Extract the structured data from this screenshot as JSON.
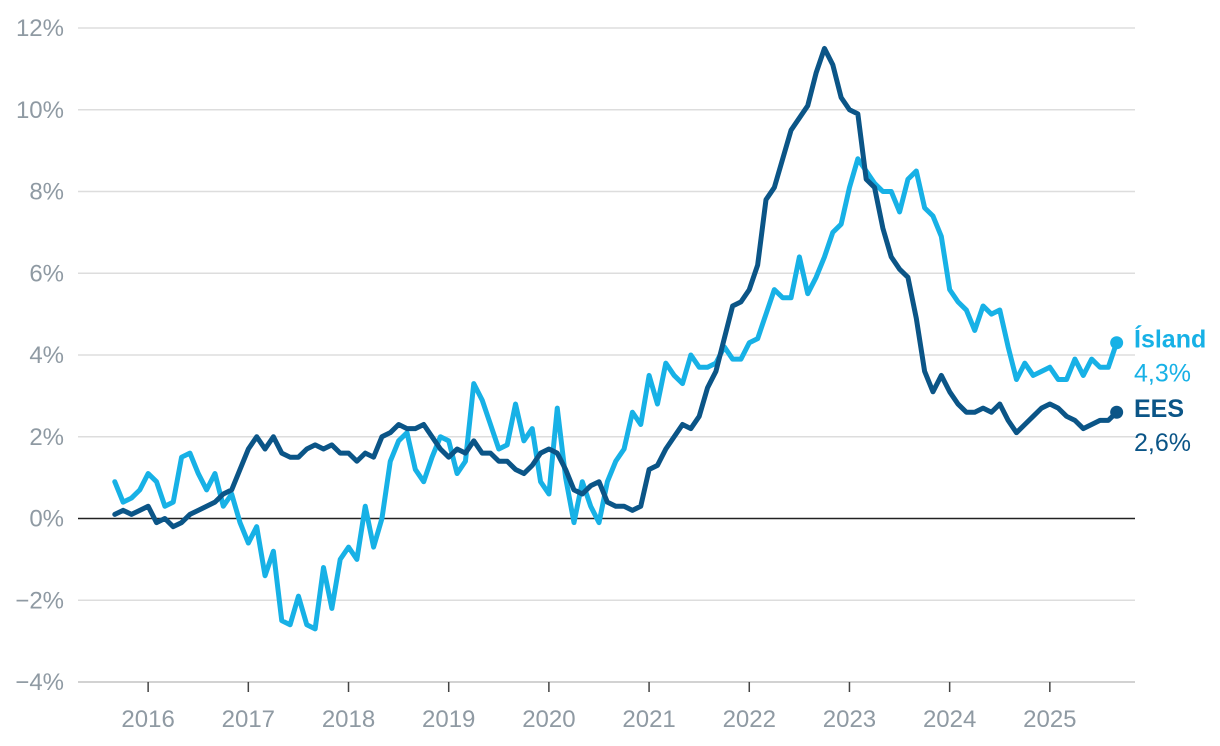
{
  "chart_data": {
    "type": "line",
    "title": "",
    "xlabel": "",
    "ylabel": "",
    "ylim": [
      -4,
      12
    ],
    "xlim": [
      2015.3,
      2025.85
    ],
    "grid": true,
    "colors": {
      "island": "#17b1e6",
      "ees": "#0b5587",
      "grid": "#dddddd",
      "zero": "#222222",
      "tick": "#8f9aa3"
    },
    "yticks": [
      {
        "value": -4,
        "label": "−4%"
      },
      {
        "value": -2,
        "label": "−2%"
      },
      {
        "value": 0,
        "label": "0%"
      },
      {
        "value": 2,
        "label": "2%"
      },
      {
        "value": 4,
        "label": "4%"
      },
      {
        "value": 6,
        "label": "6%"
      },
      {
        "value": 8,
        "label": "8%"
      },
      {
        "value": 10,
        "label": "10%"
      },
      {
        "value": 12,
        "label": "12%"
      }
    ],
    "xticks": [
      {
        "value": 2016,
        "label": "2016"
      },
      {
        "value": 2017,
        "label": "2017"
      },
      {
        "value": 2018,
        "label": "2018"
      },
      {
        "value": 2019,
        "label": "2019"
      },
      {
        "value": 2020,
        "label": "2020"
      },
      {
        "value": 2021,
        "label": "2021"
      },
      {
        "value": 2022,
        "label": "2022"
      },
      {
        "value": 2023,
        "label": "2023"
      },
      {
        "value": 2024,
        "label": "2024"
      },
      {
        "value": 2025,
        "label": "2025"
      }
    ],
    "series": [
      {
        "key": "island",
        "name": "Ísland",
        "end_label": "4,3%",
        "color": "#17b1e6",
        "start": 2015.667,
        "step": 0.0833333,
        "values": [
          0.9,
          0.4,
          0.5,
          0.7,
          1.1,
          0.9,
          0.3,
          0.4,
          1.5,
          1.6,
          1.1,
          0.7,
          1.1,
          0.3,
          0.6,
          -0.1,
          -0.6,
          -0.2,
          -1.4,
          -0.8,
          -2.5,
          -2.6,
          -1.9,
          -2.6,
          -2.7,
          -1.2,
          -2.2,
          -1.0,
          -0.7,
          -1.0,
          0.3,
          -0.7,
          0.0,
          1.4,
          1.9,
          2.1,
          1.2,
          0.9,
          1.5,
          2.0,
          1.9,
          1.1,
          1.4,
          3.3,
          2.9,
          2.3,
          1.7,
          1.8,
          2.8,
          1.9,
          2.2,
          0.9,
          0.6,
          2.7,
          1.0,
          -0.1,
          0.9,
          0.3,
          -0.1,
          0.9,
          1.4,
          1.7,
          2.6,
          2.3,
          3.5,
          2.8,
          3.8,
          3.5,
          3.3,
          4.0,
          3.7,
          3.7,
          3.8,
          4.2,
          3.9,
          3.9,
          4.3,
          4.4,
          5.0,
          5.6,
          5.4,
          5.4,
          6.4,
          5.5,
          5.9,
          6.4,
          7.0,
          7.2,
          8.1,
          8.8,
          8.5,
          8.2,
          8.0,
          8.0,
          7.5,
          8.3,
          8.5,
          7.6,
          7.4,
          6.9,
          5.6,
          5.3,
          5.1,
          4.6,
          5.2,
          5.0,
          5.1,
          4.2,
          3.4,
          3.8,
          3.5,
          3.6,
          3.7,
          3.4,
          3.4,
          3.9,
          3.5,
          3.9,
          3.7,
          3.7,
          4.3
        ]
      },
      {
        "key": "ees",
        "name": "EES",
        "end_label": "2,6%",
        "color": "#0b5587",
        "start": 2015.667,
        "step": 0.0833333,
        "values": [
          0.1,
          0.2,
          0.1,
          0.2,
          0.3,
          -0.1,
          0.0,
          -0.2,
          -0.1,
          0.1,
          0.2,
          0.3,
          0.4,
          0.6,
          0.7,
          1.2,
          1.7,
          2.0,
          1.7,
          2.0,
          1.6,
          1.5,
          1.5,
          1.7,
          1.8,
          1.7,
          1.8,
          1.6,
          1.6,
          1.4,
          1.6,
          1.5,
          2.0,
          2.1,
          2.3,
          2.2,
          2.2,
          2.3,
          2.0,
          1.7,
          1.5,
          1.7,
          1.6,
          1.9,
          1.6,
          1.6,
          1.4,
          1.4,
          1.2,
          1.1,
          1.3,
          1.6,
          1.7,
          1.6,
          1.2,
          0.7,
          0.6,
          0.8,
          0.9,
          0.4,
          0.3,
          0.3,
          0.2,
          0.3,
          1.2,
          1.3,
          1.7,
          2.0,
          2.3,
          2.2,
          2.5,
          3.2,
          3.6,
          4.4,
          5.2,
          5.3,
          5.6,
          6.2,
          7.8,
          8.1,
          8.8,
          9.5,
          9.8,
          10.1,
          10.9,
          11.5,
          11.1,
          10.3,
          10.0,
          9.9,
          8.3,
          8.1,
          7.1,
          6.4,
          6.1,
          5.9,
          4.9,
          3.6,
          3.1,
          3.5,
          3.1,
          2.8,
          2.6,
          2.6,
          2.7,
          2.6,
          2.8,
          2.4,
          2.1,
          2.3,
          2.5,
          2.7,
          2.8,
          2.7,
          2.5,
          2.4,
          2.2,
          2.3,
          2.4,
          2.4,
          2.6
        ]
      }
    ]
  }
}
